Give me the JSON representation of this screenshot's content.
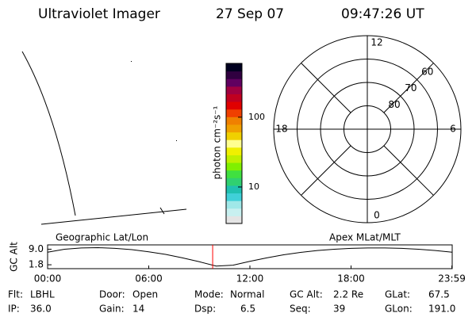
{
  "header": {
    "title": "Ultraviolet Imager",
    "date": "27 Sep 07",
    "time": "09:47:26 UT"
  },
  "chart_data": [
    {
      "type": "colorbar",
      "label": "photon cm⁻²s⁻¹",
      "log_scale": true,
      "ylim": [
        3,
        590
      ],
      "yticks": [
        10,
        100
      ],
      "colors": [
        "#e4e4e4",
        "#c8f0f0",
        "#a0e8e8",
        "#40d0d8",
        "#20c0b0",
        "#30d070",
        "#40e040",
        "#80f000",
        "#c0f000",
        "#f0f000",
        "#ffff90",
        "#f0d000",
        "#f0a000",
        "#f08000",
        "#f04000",
        "#e00000",
        "#c00020",
        "#a00040",
        "#600060",
        "#300040",
        "#000020"
      ]
    },
    {
      "type": "polar",
      "rlim": [
        90,
        50
      ],
      "rticks": [
        80,
        70,
        60
      ],
      "theta_ticks": [
        12,
        6,
        0,
        18
      ]
    },
    {
      "type": "line",
      "ylabel": "GC Alt",
      "left_label": "Geographic Lat/Lon",
      "right_label": "Apex MLat/MLT",
      "x": [
        0,
        1,
        2,
        3,
        4,
        5,
        6,
        7,
        8,
        9,
        10,
        11,
        12,
        13,
        14,
        15,
        16,
        17,
        18,
        19,
        20,
        21,
        22,
        23,
        24
      ],
      "xlim": [
        0,
        24
      ],
      "xticks": [
        {
          "value": 0,
          "label": "00:00"
        },
        {
          "value": 6,
          "label": "06:00"
        },
        {
          "value": 12,
          "label": "12:00"
        },
        {
          "value": 18,
          "label": "18:00"
        },
        {
          "value": 23.98,
          "label": "23:59"
        }
      ],
      "ylim": [
        0,
        11
      ],
      "yticks": [
        {
          "value": 9,
          "label": "9.0"
        },
        {
          "value": 1.8,
          "label": "1.8"
        }
      ],
      "series": [
        {
          "color": "#000000",
          "values": [
            7.6,
            9.0,
            9.6,
            9.7,
            9.4,
            8.8,
            7.8,
            6.6,
            5.0,
            3.2,
            1.2,
            1.6,
            3.4,
            5.0,
            6.4,
            7.5,
            8.4,
            9.0,
            9.4,
            9.6,
            9.6,
            9.4,
            9.0,
            8.4,
            7.6
          ]
        }
      ],
      "current_x": 9.791,
      "current_color": "#ff0000"
    }
  ],
  "status": {
    "rows": [
      [
        {
          "label": "Flt:",
          "value": "LBHL"
        },
        {
          "label": "Door:",
          "value": "Open"
        },
        {
          "label": "Mode:",
          "value": "Normal"
        },
        {
          "label": "GC Alt:",
          "value": "2.2 Re"
        },
        {
          "label": "GLat:",
          "value": "67.5"
        }
      ],
      [
        {
          "label": "IP:",
          "value": "36.0"
        },
        {
          "label": "Gain:",
          "value": "14"
        },
        {
          "label": "Dsp:",
          "value": "6.5"
        },
        {
          "label": "Seq:",
          "value": "39"
        },
        {
          "label": "GLon:",
          "value": "191.0"
        }
      ]
    ]
  }
}
